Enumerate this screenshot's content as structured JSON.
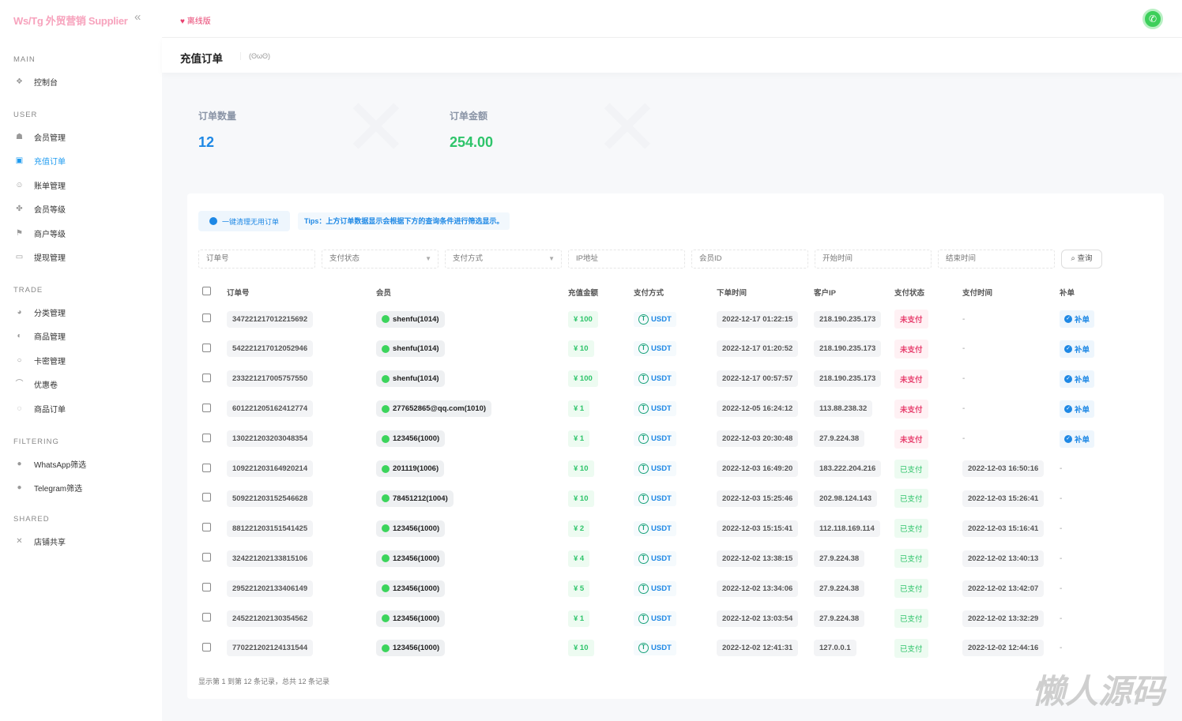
{
  "sidebar": {
    "brand": "Ws/Tg 外贸营销 Supplier",
    "collapse_icon": "«",
    "sections": [
      {
        "title": "MAIN",
        "items": [
          {
            "label": "控制台",
            "icon": "dashboard-icon"
          }
        ]
      },
      {
        "title": "USER",
        "items": [
          {
            "label": "会员管理",
            "icon": "user-icon"
          },
          {
            "label": "充值订单",
            "icon": "recharge-icon",
            "active": true
          },
          {
            "label": "账单管理",
            "icon": "bill-icon"
          },
          {
            "label": "会员等级",
            "icon": "level-icon"
          },
          {
            "label": "商户等级",
            "icon": "merchant-icon"
          },
          {
            "label": "提现管理",
            "icon": "withdraw-icon"
          }
        ]
      },
      {
        "title": "TRADE",
        "items": [
          {
            "label": "分类管理",
            "icon": "category-icon"
          },
          {
            "label": "商品管理",
            "icon": "product-icon"
          },
          {
            "label": "卡密管理",
            "icon": "card-icon"
          },
          {
            "label": "优惠卷",
            "icon": "coupon-icon"
          },
          {
            "label": "商品订单",
            "icon": "order-icon"
          }
        ]
      },
      {
        "title": "FILTERING",
        "items": [
          {
            "label": "WhatsApp筛选",
            "icon": "whatsapp-icon"
          },
          {
            "label": "Telegram筛选",
            "icon": "telegram-icon"
          }
        ]
      },
      {
        "title": "SHARED",
        "items": [
          {
            "label": "店铺共享",
            "icon": "share-icon"
          }
        ]
      }
    ]
  },
  "topbar": {
    "offline_label": "离线版"
  },
  "page": {
    "title": "充值订单",
    "face": "(ʘωʘ)"
  },
  "stats": {
    "count_label": "订单数量",
    "count_value": "12",
    "amount_label": "订单金额",
    "amount_value": "254.00",
    "count_color": "#1e88e5",
    "amount_color": "#2ec46a"
  },
  "toolbar": {
    "clean_button": "一键清理无用订单",
    "tips": "Tips：上方订单数据显示会根据下方的查询条件进行筛选显示。"
  },
  "filters": {
    "order_no": "订单号",
    "pay_status": "支付状态",
    "pay_method": "支付方式",
    "ip": "IP地址",
    "member_id": "会员ID",
    "start_time": "开始时间",
    "end_time": "结束时间",
    "search": "查询"
  },
  "table": {
    "headers": [
      "订单号",
      "会员",
      "充值金额",
      "支付方式",
      "下单时间",
      "客户IP",
      "支付状态",
      "支付时间",
      "补单"
    ],
    "rows": [
      {
        "order": "347221217012215692",
        "member": "shenfu(1014)",
        "amount": "¥ 100",
        "method": "USDT",
        "time": "2022-12-17 01:22:15",
        "ip": "218.190.235.173",
        "status": "未支付",
        "paid": false,
        "pay_time": "-",
        "supp": "补单"
      },
      {
        "order": "542221217012052946",
        "member": "shenfu(1014)",
        "amount": "¥ 10",
        "method": "USDT",
        "time": "2022-12-17 01:20:52",
        "ip": "218.190.235.173",
        "status": "未支付",
        "paid": false,
        "pay_time": "-",
        "supp": "补单"
      },
      {
        "order": "233221217005757550",
        "member": "shenfu(1014)",
        "amount": "¥ 100",
        "method": "USDT",
        "time": "2022-12-17 00:57:57",
        "ip": "218.190.235.173",
        "status": "未支付",
        "paid": false,
        "pay_time": "-",
        "supp": "补单"
      },
      {
        "order": "601221205162412774",
        "member": "277652865@qq.com(1010)",
        "amount": "¥ 1",
        "method": "USDT",
        "time": "2022-12-05 16:24:12",
        "ip": "113.88.238.32",
        "status": "未支付",
        "paid": false,
        "pay_time": "-",
        "supp": "补单"
      },
      {
        "order": "130221203203048354",
        "member": "123456(1000)",
        "amount": "¥ 1",
        "method": "USDT",
        "time": "2022-12-03 20:30:48",
        "ip": "27.9.224.38",
        "status": "未支付",
        "paid": false,
        "pay_time": "-",
        "supp": "补单"
      },
      {
        "order": "109221203164920214",
        "member": "201119(1006)",
        "amount": "¥ 10",
        "method": "USDT",
        "time": "2022-12-03 16:49:20",
        "ip": "183.222.204.216",
        "status": "已支付",
        "paid": true,
        "pay_time": "2022-12-03 16:50:16",
        "supp": "-"
      },
      {
        "order": "509221203152546628",
        "member": "78451212(1004)",
        "amount": "¥ 10",
        "method": "USDT",
        "time": "2022-12-03 15:25:46",
        "ip": "202.98.124.143",
        "status": "已支付",
        "paid": true,
        "pay_time": "2022-12-03 15:26:41",
        "supp": "-"
      },
      {
        "order": "881221203151541425",
        "member": "123456(1000)",
        "amount": "¥ 2",
        "method": "USDT",
        "time": "2022-12-03 15:15:41",
        "ip": "112.118.169.114",
        "status": "已支付",
        "paid": true,
        "pay_time": "2022-12-03 15:16:41",
        "supp": "-"
      },
      {
        "order": "324221202133815106",
        "member": "123456(1000)",
        "amount": "¥ 4",
        "method": "USDT",
        "time": "2022-12-02 13:38:15",
        "ip": "27.9.224.38",
        "status": "已支付",
        "paid": true,
        "pay_time": "2022-12-02 13:40:13",
        "supp": "-"
      },
      {
        "order": "295221202133406149",
        "member": "123456(1000)",
        "amount": "¥ 5",
        "method": "USDT",
        "time": "2022-12-02 13:34:06",
        "ip": "27.9.224.38",
        "status": "已支付",
        "paid": true,
        "pay_time": "2022-12-02 13:42:07",
        "supp": "-"
      },
      {
        "order": "245221202130354562",
        "member": "123456(1000)",
        "amount": "¥ 1",
        "method": "USDT",
        "time": "2022-12-02 13:03:54",
        "ip": "27.9.224.38",
        "status": "已支付",
        "paid": true,
        "pay_time": "2022-12-02 13:32:29",
        "supp": "-"
      },
      {
        "order": "770221202124131544",
        "member": "123456(1000)",
        "amount": "¥ 10",
        "method": "USDT",
        "time": "2022-12-02 12:41:31",
        "ip": "127.0.0.1",
        "status": "已支付",
        "paid": true,
        "pay_time": "2022-12-02 12:44:16",
        "supp": "-"
      }
    ],
    "footer": "显示第 1 到第 12 条记录，总共 12 条记录"
  },
  "watermark": "懒人源码"
}
